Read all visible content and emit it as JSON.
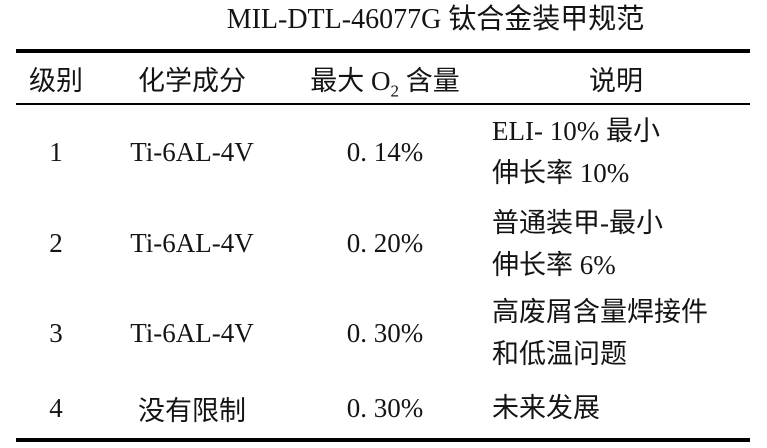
{
  "title": "MIL-DTL-46077G 钛合金装甲规范",
  "table": {
    "headers": [
      {
        "label": "级别"
      },
      {
        "label": "化学成分"
      },
      {
        "prefix": "最大 O",
        "sub": "2",
        "suffix": " 含量"
      },
      {
        "label": "说明"
      }
    ],
    "rows": [
      {
        "grade": "1",
        "composition": "Ti-6AL-4V",
        "max_o2": "0. 14%",
        "description_line1": "ELI- 10% 最小",
        "description_line2": "伸长率 10%"
      },
      {
        "grade": "2",
        "composition": "Ti-6AL-4V",
        "max_o2": "0. 20%",
        "description_line1": "普通装甲-最小",
        "description_line2": "伸长率 6%"
      },
      {
        "grade": "3",
        "composition": "Ti-6AL-4V",
        "max_o2": "0. 30%",
        "description_line1": "高废屑含量焊接件",
        "description_line2": "和低温问题"
      },
      {
        "grade": "4",
        "composition": "没有限制",
        "max_o2": "0. 30%",
        "description_line1": "未来发展"
      }
    ]
  },
  "colors": {
    "text": "#141414",
    "background": "#ffffff",
    "rule": "#000000"
  }
}
